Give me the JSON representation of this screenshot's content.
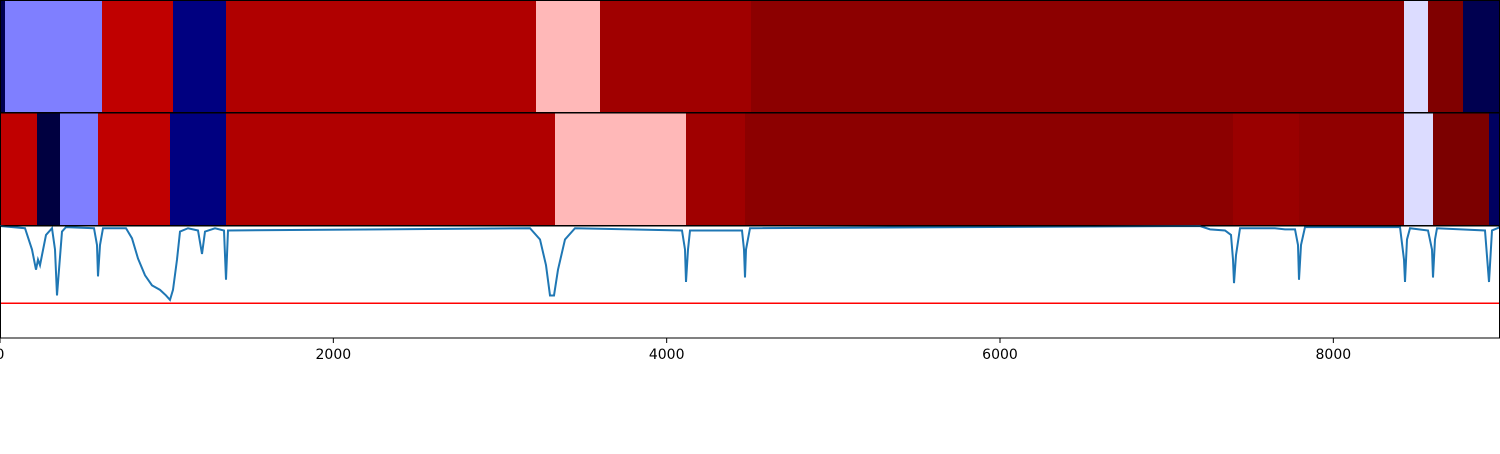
{
  "chart_data": {
    "type": "segmentation",
    "xlim": [
      0,
      9000
    ],
    "xticks": [
      0,
      2000,
      4000,
      6000,
      8000
    ],
    "segment_rows": [
      {
        "edges": [
          0,
          30,
          612,
          1038,
          1356,
          3216,
          3600,
          4506,
          8424,
          8568,
          8778,
          9000
        ],
        "colors": [
          "#000050",
          "#7f7fff",
          "#c00000",
          "#000080",
          "#b00000",
          "#ffb8b8",
          "#a00000",
          "#8c0000",
          "#dcdcff",
          "#800000",
          "#000050"
        ]
      },
      {
        "edges": [
          0,
          222,
          360,
          588,
          1020,
          1356,
          3330,
          4116,
          4470,
          7398,
          7794,
          8424,
          8598,
          8934,
          9000
        ],
        "colors": [
          "#c00000",
          "#000040",
          "#7f7fff",
          "#c00000",
          "#000080",
          "#b00000",
          "#ffb8b8",
          "#a00000",
          "#8c0000",
          "#9a0000",
          "#900000",
          "#dcdcff",
          "#7c0000",
          "#000060"
        ]
      }
    ],
    "ylim": [
      0,
      1
    ],
    "line": {
      "color": "#1f77b4",
      "x": [
        0,
        150,
        192,
        216,
        228,
        240,
        252,
        276,
        312,
        330,
        342,
        354,
        372,
        396,
        564,
        582,
        588,
        600,
        618,
        756,
        792,
        828,
        870,
        912,
        960,
        996,
        1020,
        1038,
        1062,
        1080,
        1128,
        1188,
        1212,
        1230,
        1290,
        1344,
        1356,
        1368,
        3180,
        3240,
        3276,
        3300,
        3324,
        3348,
        3390,
        3450,
        4092,
        4110,
        4116,
        4128,
        4140,
        4452,
        4464,
        4470,
        4476,
        4500,
        7200,
        7260,
        7350,
        7386,
        7398,
        7404,
        7416,
        7440,
        7650,
        7710,
        7770,
        7788,
        7794,
        7806,
        7830,
        8400,
        8424,
        8430,
        8442,
        8460,
        8568,
        8592,
        8598,
        8610,
        8622,
        8910,
        8934,
        8952,
        9000
      ],
      "values": [
        1.0,
        0.98,
        0.79,
        0.61,
        0.7,
        0.65,
        0.74,
        0.92,
        0.98,
        0.79,
        0.38,
        0.61,
        0.95,
        0.99,
        0.98,
        0.83,
        0.55,
        0.83,
        0.98,
        0.98,
        0.89,
        0.71,
        0.56,
        0.47,
        0.43,
        0.38,
        0.34,
        0.43,
        0.7,
        0.95,
        0.98,
        0.96,
        0.75,
        0.95,
        0.98,
        0.96,
        0.52,
        0.96,
        0.98,
        0.88,
        0.65,
        0.38,
        0.38,
        0.61,
        0.88,
        0.98,
        0.96,
        0.79,
        0.5,
        0.79,
        0.96,
        0.96,
        0.79,
        0.54,
        0.79,
        0.98,
        1.0,
        0.97,
        0.96,
        0.92,
        0.7,
        0.49,
        0.74,
        0.98,
        0.98,
        0.97,
        0.97,
        0.83,
        0.52,
        0.83,
        0.99,
        0.99,
        0.7,
        0.5,
        0.88,
        0.98,
        0.96,
        0.79,
        0.54,
        0.88,
        0.98,
        0.96,
        0.5,
        0.96,
        0.99
      ]
    },
    "threshold": {
      "value": 0.31,
      "color": "#ff0000"
    }
  }
}
